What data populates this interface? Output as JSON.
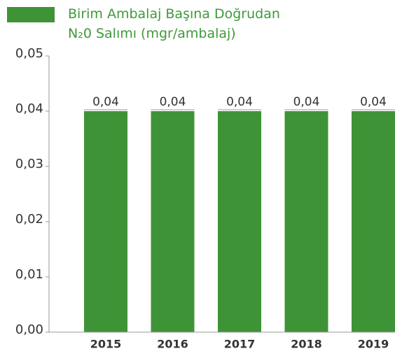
{
  "chart_data": {
    "type": "bar",
    "series": [
      {
        "name": "Birim Ambalaj Başına Doğrudan N₂0 Salımı (mgr/ambalaj)",
        "color": "#3f9337",
        "values": [
          0.04,
          0.04,
          0.04,
          0.04,
          0.04
        ],
        "value_labels": [
          "0,04",
          "0,04",
          "0,04",
          "0,04",
          "0,04"
        ]
      }
    ],
    "categories": [
      "2015",
      "2016",
      "2017",
      "2018",
      "2019"
    ],
    "ylim": [
      0,
      0.05
    ],
    "yticks": [
      {
        "value": 0,
        "label": "0,00"
      },
      {
        "value": 0.01,
        "label": "0,01"
      },
      {
        "value": 0.02,
        "label": "0,02"
      },
      {
        "value": 0.03,
        "label": "0,03"
      },
      {
        "value": 0.04,
        "label": "0,04"
      },
      {
        "value": 0.05,
        "label": "0,05"
      }
    ],
    "legend": "top-left"
  }
}
